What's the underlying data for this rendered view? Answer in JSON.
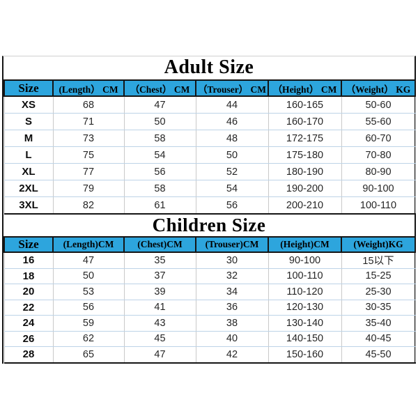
{
  "page": {
    "background": "#ffffff"
  },
  "colors": {
    "header_blue": "#2da5dd",
    "border_dark": "#141414",
    "grid_vertical": "#c9c9c9",
    "grid_horizontal": "#bdd3e7",
    "title_text": "#000000",
    "data_text": "#262626"
  },
  "chart_data": [
    {
      "type": "table",
      "title": "Adult Size",
      "columns": [
        "Size",
        "(Length） CM",
        "（Chest） CM",
        "（Trouser） CM",
        "（Height） CM",
        "（Weight） KG"
      ],
      "rows": [
        [
          "XS",
          "68",
          "47",
          "44",
          "160-165",
          "50-60"
        ],
        [
          "S",
          "71",
          "50",
          "46",
          "160-170",
          "55-60"
        ],
        [
          "M",
          "73",
          "58",
          "48",
          "172-175",
          "60-70"
        ],
        [
          "L",
          "75",
          "54",
          "50",
          "175-180",
          "70-80"
        ],
        [
          "XL",
          "77",
          "56",
          "52",
          "180-190",
          "80-90"
        ],
        [
          "2XL",
          "79",
          "58",
          "54",
          "190-200",
          "90-100"
        ],
        [
          "3XL",
          "82",
          "61",
          "56",
          "200-210",
          "100-110"
        ]
      ],
      "units_note": "lengths in CM, weight in KG",
      "header_bg": "#2da5dd"
    },
    {
      "type": "table",
      "title": "Children Size",
      "columns": [
        "Size",
        "(Length)CM",
        "(Chest)CM",
        "(Trouser)CM",
        "(Height)CM",
        "(Weight)KG"
      ],
      "rows": [
        [
          "16",
          "47",
          "35",
          "30",
          "90-100",
          "15以下"
        ],
        [
          "18",
          "50",
          "37",
          "32",
          "100-110",
          "15-25"
        ],
        [
          "20",
          "53",
          "39",
          "34",
          "110-120",
          "25-30"
        ],
        [
          "22",
          "56",
          "41",
          "36",
          "120-130",
          "30-35"
        ],
        [
          "24",
          "59",
          "43",
          "38",
          "130-140",
          "35-40"
        ],
        [
          "26",
          "62",
          "45",
          "40",
          "140-150",
          "40-45"
        ],
        [
          "28",
          "65",
          "47",
          "42",
          "150-160",
          "45-50"
        ]
      ],
      "units_note": "lengths in CM, weight in KG",
      "header_bg": "#2da5dd"
    }
  ]
}
